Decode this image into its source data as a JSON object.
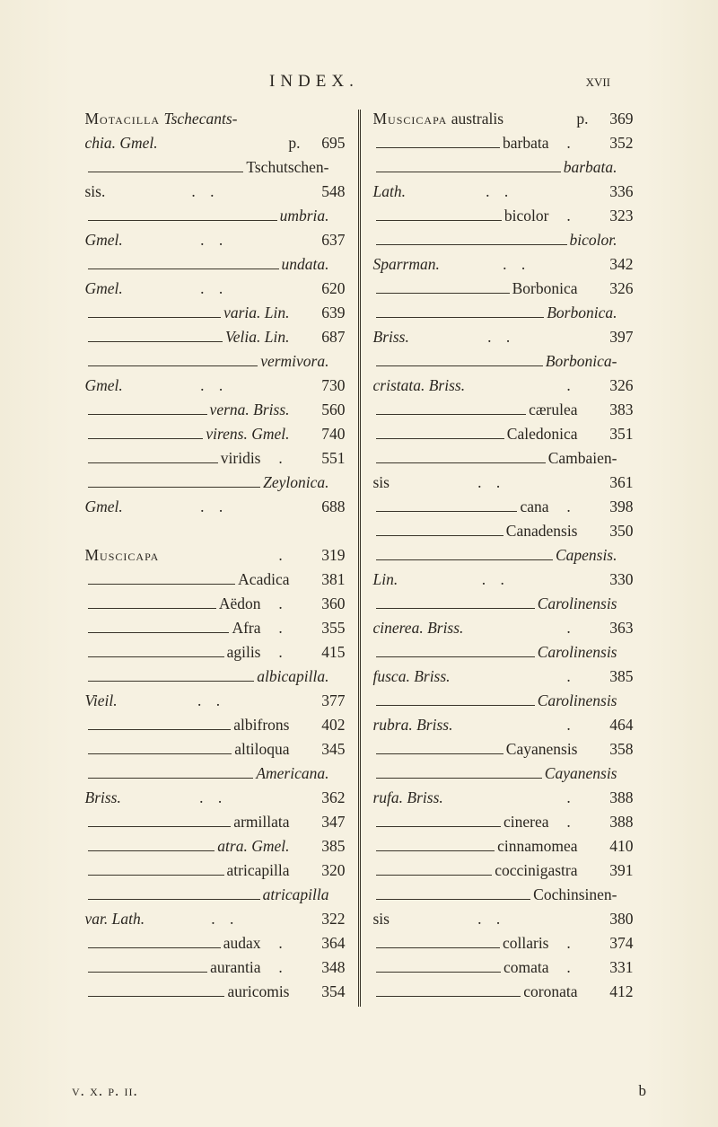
{
  "header": {
    "center": "INDEX.",
    "right": "xvii"
  },
  "left": [
    {
      "t": "genus",
      "sc": "Motacilla",
      "it": " Tschecants-"
    },
    {
      "t": "cont",
      "lbl": "chia. Gmel.",
      "p": "p.",
      "num": "695",
      "it": true
    },
    {
      "t": "dash",
      "lbl": "Tschutschen-"
    },
    {
      "t": "cont",
      "lbl": "sis.",
      "dots": true,
      "num": "548"
    },
    {
      "t": "dash",
      "lbl": "umbria.",
      "it": true
    },
    {
      "t": "cont",
      "lbl": "Gmel.",
      "dots": true,
      "num": "637",
      "it": true
    },
    {
      "t": "dash",
      "lbl": "undata.",
      "it": true
    },
    {
      "t": "cont",
      "lbl": "Gmel.",
      "dots": true,
      "num": "620",
      "it": true
    },
    {
      "t": "dash",
      "lbl": "varia. Lin.",
      "num": "639",
      "it": true
    },
    {
      "t": "dash",
      "lbl": "Velia. Lin.",
      "num": "687",
      "it": true
    },
    {
      "t": "dash",
      "lbl": "vermivora.",
      "it": true
    },
    {
      "t": "cont",
      "lbl": "Gmel.",
      "dots": true,
      "num": "730",
      "it": true
    },
    {
      "t": "dash",
      "lbl": "verna. Briss.",
      "num": "560",
      "it": true
    },
    {
      "t": "dash",
      "lbl": "virens. Gmel.",
      "num": "740",
      "it": true
    },
    {
      "t": "dash",
      "lbl": "viridis",
      "dot": true,
      "num": "551"
    },
    {
      "t": "dash",
      "lbl": "Zeylonica.",
      "it": true
    },
    {
      "t": "cont",
      "lbl": "Gmel.",
      "dots": true,
      "num": "688",
      "it": true
    },
    {
      "t": "blank"
    },
    {
      "t": "genus",
      "sc": "Muscicapa",
      "num": "319",
      "dot": true
    },
    {
      "t": "dash",
      "lbl": "Acadica",
      "num": "381"
    },
    {
      "t": "dash",
      "lbl": "Aëdon",
      "dot": true,
      "num": "360"
    },
    {
      "t": "dash",
      "lbl": "Afra",
      "dot": true,
      "num": "355"
    },
    {
      "t": "dash",
      "lbl": "agilis",
      "dot": true,
      "num": "415"
    },
    {
      "t": "dash",
      "lbl": "albicapilla.",
      "it": true
    },
    {
      "t": "cont",
      "lbl": "Vieil.",
      "dots": true,
      "num": "377",
      "it": true
    },
    {
      "t": "dash",
      "lbl": "albifrons",
      "num": "402"
    },
    {
      "t": "dash",
      "lbl": "altiloqua",
      "num": "345"
    },
    {
      "t": "dash",
      "lbl": "Americana.",
      "it": true
    },
    {
      "t": "cont",
      "lbl": "Briss.",
      "dots": true,
      "num": "362",
      "it": true
    },
    {
      "t": "dash",
      "lbl": "armillata",
      "num": "347"
    },
    {
      "t": "dash",
      "lbl": "atra. Gmel.",
      "num": "385",
      "it": true
    },
    {
      "t": "dash",
      "lbl": "atricapilla",
      "num": "320"
    },
    {
      "t": "dash",
      "lbl": "atricapilla",
      "it": true
    },
    {
      "t": "cont",
      "lbl": "var. Lath.",
      "dots": true,
      "num": "322",
      "it": true
    },
    {
      "t": "dash",
      "lbl": "audax",
      "dot": true,
      "num": "364"
    },
    {
      "t": "dash",
      "lbl": "aurantia",
      "dot": true,
      "num": "348"
    },
    {
      "t": "dash",
      "lbl": "auricomis",
      "num": "354"
    }
  ],
  "right": [
    {
      "t": "genus",
      "sc": "Muscicapa",
      "plain": " australis",
      "p": "p.",
      "num": "369"
    },
    {
      "t": "dash",
      "lbl": "barbata",
      "dot": true,
      "num": "352"
    },
    {
      "t": "dash",
      "lbl": "barbata.",
      "it": true
    },
    {
      "t": "cont",
      "lbl": "Lath.",
      "dots": true,
      "num": "336",
      "it": true
    },
    {
      "t": "dash",
      "lbl": "bicolor",
      "dot": true,
      "num": "323"
    },
    {
      "t": "dash",
      "lbl": "bicolor.",
      "it": true
    },
    {
      "t": "cont",
      "lbl": "Sparrman.",
      "dots": true,
      "num": "342",
      "it": true
    },
    {
      "t": "dash",
      "lbl": "Borbonica",
      "num": "326"
    },
    {
      "t": "dash",
      "lbl": "Borbonica.",
      "it": true
    },
    {
      "t": "cont",
      "lbl": "Briss.",
      "dots": true,
      "num": "397",
      "it": true
    },
    {
      "t": "dash",
      "lbl": "Borbonica-",
      "it": true
    },
    {
      "t": "cont",
      "lbl": "cristata. Briss.",
      "dot": true,
      "num": "326",
      "it": true
    },
    {
      "t": "dash",
      "lbl": "cærulea",
      "num": "383"
    },
    {
      "t": "dash",
      "lbl": "Caledonica",
      "num": "351"
    },
    {
      "t": "dash",
      "lbl": "Cambaien-"
    },
    {
      "t": "cont",
      "lbl": "sis",
      "dots": true,
      "num": "361"
    },
    {
      "t": "dash",
      "lbl": "cana",
      "dot": true,
      "num": "398"
    },
    {
      "t": "dash",
      "lbl": "Canadensis",
      "num": "350"
    },
    {
      "t": "dash",
      "lbl": "Capensis.",
      "it": true
    },
    {
      "t": "cont",
      "lbl": "Lin.",
      "dots": true,
      "num": "330",
      "it": true
    },
    {
      "t": "dash",
      "lbl": "Carolinensis",
      "it": true
    },
    {
      "t": "cont",
      "lbl": "cinerea. Briss.",
      "dot": true,
      "num": "363",
      "it": true
    },
    {
      "t": "dash",
      "lbl": "Carolinensis",
      "it": true
    },
    {
      "t": "cont",
      "lbl": "fusca. Briss.",
      "dot": true,
      "num": "385",
      "it": true
    },
    {
      "t": "dash",
      "lbl": "Carolinensis",
      "it": true
    },
    {
      "t": "cont",
      "lbl": "rubra. Briss.",
      "dot": true,
      "num": "464",
      "it": true
    },
    {
      "t": "dash",
      "lbl": "Cayanensis",
      "num": "358"
    },
    {
      "t": "dash",
      "lbl": "Cayanensis",
      "it": true
    },
    {
      "t": "cont",
      "lbl": "rufa. Briss.",
      "dot": true,
      "num": "388",
      "it": true
    },
    {
      "t": "dash",
      "lbl": "cinerea",
      "dot": true,
      "num": "388"
    },
    {
      "t": "dash",
      "lbl": "cinnamomea",
      "num": "410"
    },
    {
      "t": "dash",
      "lbl": "coccinigastra",
      "num": "391"
    },
    {
      "t": "dash",
      "lbl": "Cochinsinen-"
    },
    {
      "t": "cont",
      "lbl": "sis",
      "dots": true,
      "num": "380"
    },
    {
      "t": "dash",
      "lbl": "collaris",
      "dot": true,
      "num": "374"
    },
    {
      "t": "dash",
      "lbl": "comata",
      "dot": true,
      "num": "331"
    },
    {
      "t": "dash",
      "lbl": "coronata",
      "num": "412"
    }
  ],
  "sig": {
    "left": "v. x. p. ii.",
    "right": "b"
  }
}
